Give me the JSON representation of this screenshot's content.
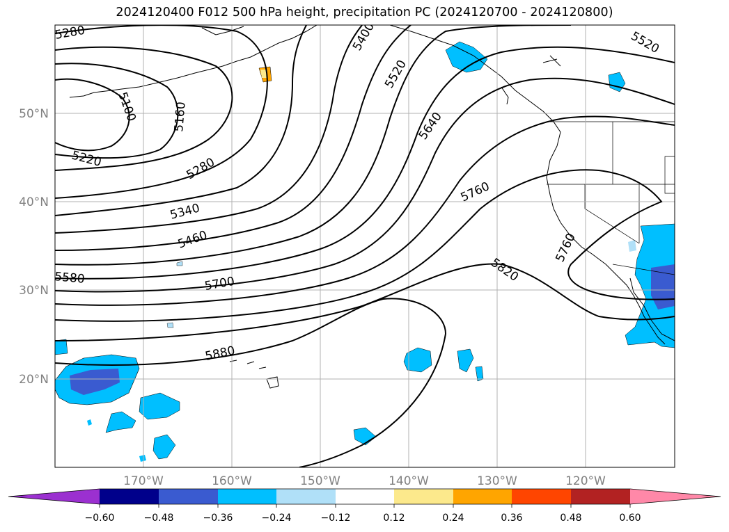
{
  "title": "2024120400 F012 500 hPa height, precipitation PC (2024120700 - 2024120800)",
  "lat_labels": [
    "50°N",
    "40°N",
    "30°N",
    "20°N"
  ],
  "lon_labels": [
    "170°W",
    "160°W",
    "150°W",
    "140°W",
    "130°W",
    "120°W"
  ],
  "contour_labels": [
    "5280",
    "5100",
    "5160",
    "5220",
    "5280",
    "5340",
    "5400",
    "5520",
    "5520",
    "5460",
    "5580",
    "5640",
    "5700",
    "5760",
    "5760",
    "5820",
    "5880"
  ],
  "colorbar": {
    "ticks": [
      "−0.60",
      "−0.48",
      "−0.36",
      "−0.24",
      "−0.12",
      "0.12",
      "0.24",
      "0.36",
      "0.48",
      "0.60"
    ],
    "colors": [
      "#9b30d0",
      "#00008b",
      "#3a5bd0",
      "#00bfff",
      "#b0e0f8",
      "#ffffff",
      "#fce98c",
      "#ffa500",
      "#ff4500",
      "#b22222",
      "#ff88a8"
    ]
  }
}
